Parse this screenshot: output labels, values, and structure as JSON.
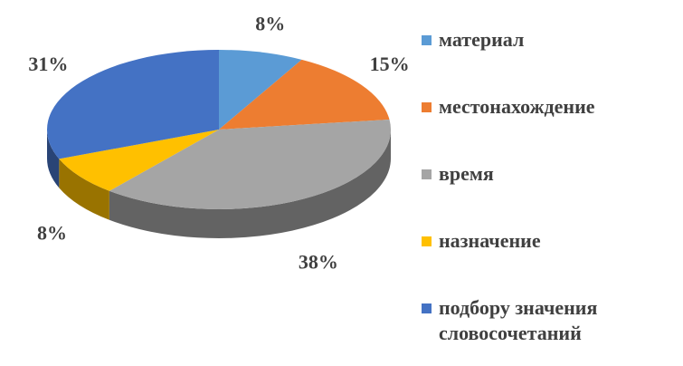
{
  "chart_data": {
    "type": "pie3d",
    "categories": [
      "материал",
      "местонахождение",
      "время",
      "назначение",
      "подбору значения словосочетаний"
    ],
    "values": [
      8,
      15,
      38,
      8,
      31
    ],
    "value_labels": [
      "8%",
      "15%",
      "38%",
      "8%",
      "31%"
    ],
    "colors": [
      "#5b9bd5",
      "#ed7d31",
      "#a5a5a5",
      "#ffc000",
      "#4472c4"
    ],
    "legend": "right"
  }
}
